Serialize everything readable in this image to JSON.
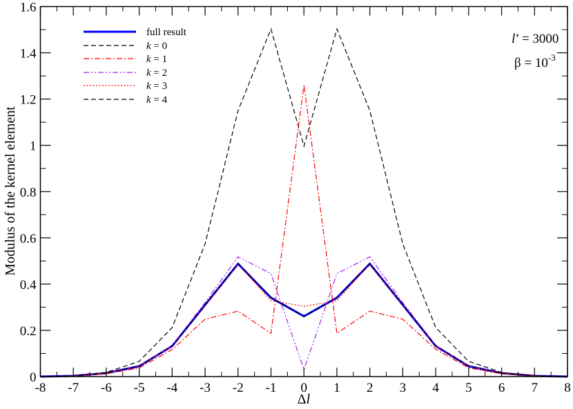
{
  "chart_data": {
    "type": "line",
    "title": "",
    "xlabel": "Δl",
    "ylabel": "Modulus of the kernel element",
    "xlim": [
      -8,
      8
    ],
    "ylim": [
      0,
      1.6
    ],
    "grid": false,
    "legend_position": "upper-left",
    "x": [
      -8,
      -7,
      -6,
      -5,
      -4,
      -3,
      -2,
      -1,
      0,
      1,
      2,
      3,
      4,
      5,
      6,
      7,
      8
    ],
    "x_ticks": [
      "-8",
      "-7",
      "-6",
      "-5",
      "-4",
      "-3",
      "-2",
      "-1",
      "0",
      "1",
      "2",
      "3",
      "4",
      "5",
      "6",
      "7",
      "8"
    ],
    "y_ticks": [
      "0",
      "0.2",
      "0.4",
      "0.6",
      "0.8",
      "1",
      "1.2",
      "1.4",
      "1.6"
    ],
    "y_tick_values": [
      0,
      0.2,
      0.4,
      0.6,
      0.8,
      1.0,
      1.2,
      1.4,
      1.6
    ],
    "series": [
      {
        "name": "full result",
        "color": "#0000ff",
        "dash": "solid",
        "width": 3,
        "values": [
          0.0,
          0.003,
          0.015,
          0.045,
          0.132,
          0.31,
          0.488,
          0.341,
          0.261,
          0.341,
          0.488,
          0.31,
          0.132,
          0.045,
          0.015,
          0.003,
          0.0
        ]
      },
      {
        "name": "k = 0",
        "color": "#000000",
        "dash": "dashed",
        "width": 1.2,
        "values": [
          0.0,
          0.004,
          0.018,
          0.066,
          0.212,
          0.574,
          1.15,
          1.503,
          0.996,
          1.503,
          1.15,
          0.574,
          0.212,
          0.066,
          0.018,
          0.004,
          0.0
        ]
      },
      {
        "name": "k = 1",
        "color": "#ff0000",
        "dash": "dash-dot",
        "width": 1.2,
        "values": [
          0.0,
          0.002,
          0.012,
          0.038,
          0.117,
          0.248,
          0.283,
          0.187,
          1.261,
          0.187,
          0.283,
          0.248,
          0.118,
          0.038,
          0.012,
          0.002,
          0.0
        ]
      },
      {
        "name": "k = 2",
        "color": "#a020f0",
        "dash": "dash-dot-dot",
        "width": 1.2,
        "values": [
          0.0,
          0.003,
          0.015,
          0.046,
          0.135,
          0.32,
          0.518,
          0.445,
          0.03,
          0.445,
          0.518,
          0.32,
          0.135,
          0.046,
          0.015,
          0.003,
          0.0
        ]
      },
      {
        "name": "k = 3",
        "color": "#ff0000",
        "dash": "dotted",
        "width": 1.2,
        "values": [
          0.0,
          0.003,
          0.015,
          0.045,
          0.131,
          0.308,
          0.486,
          0.328,
          0.304,
          0.328,
          0.486,
          0.308,
          0.131,
          0.045,
          0.015,
          0.003,
          0.0
        ]
      },
      {
        "name": "k = 4",
        "color": "#000000",
        "dash": "dashed",
        "width": 1.2,
        "values": [
          0.0,
          0.003,
          0.015,
          0.045,
          0.132,
          0.31,
          0.488,
          0.341,
          0.261,
          0.341,
          0.488,
          0.31,
          0.132,
          0.045,
          0.015,
          0.003,
          0.0
        ]
      }
    ],
    "annotations": [
      {
        "text": "l’ = 3000",
        "position": "top-right"
      },
      {
        "text": "β = 10^-3",
        "position": "top-right"
      }
    ]
  },
  "legend": {
    "items": [
      {
        "label": "full result",
        "italic_k": false
      },
      {
        "label_k": "k",
        "label_rest": " = 0",
        "italic_k": true
      },
      {
        "label_k": "k",
        "label_rest": " = 1",
        "italic_k": true
      },
      {
        "label_k": "k",
        "label_rest": " = 2",
        "italic_k": true
      },
      {
        "label_k": "k",
        "label_rest": " = 3",
        "italic_k": true
      },
      {
        "label_k": "k",
        "label_rest": " = 4",
        "italic_k": true
      }
    ]
  },
  "annotation": {
    "lprime_symbol": "l",
    "lprime_rest": "’ = 3000",
    "beta_text": "β = 10",
    "beta_exp": "-3"
  },
  "axes": {
    "xlabel_delta": "Δ",
    "xlabel_l": "l",
    "ylabel": "Modulus of the kernel element"
  }
}
